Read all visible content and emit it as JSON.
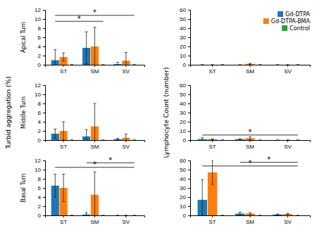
{
  "chart_data": [
    {
      "type": "bar",
      "categories": [
        "ST",
        "SM",
        "SV"
      ],
      "y_label": "Apical Turn",
      "ylim": [
        0,
        12
      ],
      "yticks": [
        0,
        2,
        4,
        6,
        8,
        10,
        12
      ],
      "series": [
        {
          "name": "Gd-DTPA",
          "values": [
            1.0,
            3.7,
            0.15
          ],
          "errors": [
            2.3,
            3.5,
            0.4
          ]
        },
        {
          "name": "Gd-DTPA-BMA",
          "values": [
            1.7,
            4.0,
            0.9
          ],
          "errors": [
            0.9,
            4.2,
            1.8
          ]
        },
        {
          "name": "Control",
          "values": [
            0.0,
            0.0,
            0.0
          ],
          "errors": [
            0.0,
            0.0,
            0.0
          ]
        }
      ],
      "annotations": [
        {
          "text": "*",
          "y": 9.5,
          "from": {
            "category": "ST",
            "series": "Gd-DTPA"
          },
          "to": {
            "category": "SM",
            "series": "Control"
          }
        },
        {
          "text": "*",
          "y": 10.8,
          "from": {
            "category": "ST",
            "series": "Gd-DTPA"
          },
          "to": {
            "category": "SV",
            "series": "Control"
          }
        }
      ]
    },
    {
      "type": "bar",
      "categories": [
        "ST",
        "SM",
        "SV"
      ],
      "ylim": [
        0,
        60
      ],
      "yticks": [
        0,
        10,
        20,
        30,
        40,
        50,
        60
      ],
      "legend": "upper right",
      "series": [
        {
          "name": "Gd-DTPA",
          "values": [
            0.0,
            0.0,
            0.0
          ],
          "errors": [
            0.0,
            0.0,
            0.0
          ]
        },
        {
          "name": "Gd-DTPA-BMA",
          "values": [
            0.0,
            1.0,
            0.0
          ],
          "errors": [
            0.0,
            0.5,
            0.0
          ]
        },
        {
          "name": "Control",
          "values": [
            0.0,
            0.0,
            0.0
          ],
          "errors": [
            0.0,
            0.0,
            0.0
          ]
        }
      ],
      "annotations": []
    },
    {
      "type": "bar",
      "categories": [
        "ST",
        "SM",
        "SV"
      ],
      "y_label": "Middle Turn",
      "ylim": [
        0,
        12
      ],
      "yticks": [
        0,
        2,
        4,
        6,
        8,
        10,
        12
      ],
      "series": [
        {
          "name": "Gd-DTPA",
          "values": [
            1.4,
            0.8,
            0.2
          ],
          "errors": [
            1.0,
            1.5,
            0.15
          ]
        },
        {
          "name": "Gd-DTPA-BMA",
          "values": [
            2.0,
            3.0,
            0.5
          ],
          "errors": [
            2.0,
            5.0,
            0.8
          ]
        },
        {
          "name": "Control",
          "values": [
            0.0,
            0.0,
            0.0
          ],
          "errors": [
            0.0,
            0.0,
            0.0
          ]
        }
      ],
      "annotations": []
    },
    {
      "type": "bar",
      "categories": [
        "ST",
        "SM",
        "SV"
      ],
      "ylim": [
        0,
        60
      ],
      "yticks": [
        0,
        10,
        20,
        30,
        40,
        50,
        60
      ],
      "series": [
        {
          "name": "Gd-DTPA",
          "values": [
            1.0,
            1.0,
            0.0
          ],
          "errors": [
            1.5,
            0.5,
            0.0
          ]
        },
        {
          "name": "Gd-DTPA-BMA",
          "values": [
            1.0,
            2.0,
            0.0
          ],
          "errors": [
            0.5,
            1.5,
            0.0
          ]
        },
        {
          "name": "Control",
          "values": [
            0.0,
            0.0,
            0.0
          ],
          "errors": [
            0.0,
            0.0,
            0.0
          ]
        }
      ],
      "annotations": [
        {
          "text": "*",
          "y": 5.5,
          "from": {
            "category": "ST",
            "series": "Gd-DTPA"
          },
          "to": {
            "category": "SV",
            "series": "Control"
          }
        }
      ]
    },
    {
      "type": "bar",
      "categories": [
        "ST",
        "SM",
        "SV"
      ],
      "y_label": "Basal Turn",
      "ylim": [
        0,
        12
      ],
      "yticks": [
        0,
        2,
        4,
        6,
        8,
        10,
        12
      ],
      "series": [
        {
          "name": "Gd-DTPA",
          "values": [
            6.5,
            0.2,
            0.0
          ],
          "errors": [
            2.5,
            0.4,
            0.0
          ]
        },
        {
          "name": "Gd-DTPA-BMA",
          "values": [
            6.0,
            4.5,
            0.0
          ],
          "errors": [
            3.0,
            5.0,
            0.0
          ]
        },
        {
          "name": "Control",
          "values": [
            0.0,
            0.0,
            0.0
          ],
          "errors": [
            0.0,
            0.0,
            0.0
          ]
        }
      ],
      "annotations": [
        {
          "text": "*",
          "y": 10.5,
          "from": {
            "category": "ST",
            "series": "Gd-DTPA"
          },
          "to": {
            "category": "SV",
            "series": "Control"
          }
        },
        {
          "text": "*",
          "y": 11.5,
          "from": {
            "category": "SM",
            "series": "Gd-DTPA"
          },
          "to": {
            "category": "SV",
            "series": "Control"
          }
        }
      ]
    },
    {
      "type": "bar",
      "categories": [
        "ST",
        "SM",
        "SV"
      ],
      "ylim": [
        0,
        60
      ],
      "yticks": [
        0,
        10,
        20,
        30,
        40,
        50,
        60
      ],
      "series": [
        {
          "name": "Gd-DTPA",
          "values": [
            17.0,
            2.0,
            1.0
          ],
          "errors": [
            22.0,
            1.5,
            0.5
          ]
        },
        {
          "name": "Gd-DTPA-BMA",
          "values": [
            47.0,
            2.0,
            1.5
          ],
          "errors": [
            13.0,
            1.0,
            0.5
          ]
        },
        {
          "name": "Control",
          "values": [
            0.0,
            0.0,
            0.0
          ],
          "errors": [
            0.0,
            0.0,
            0.0
          ]
        }
      ],
      "annotations": [
        {
          "text": "*",
          "y": 54,
          "from": {
            "category": "ST",
            "series": "Gd-DTPA"
          },
          "to": {
            "category": "SV",
            "series": "Control"
          }
        },
        {
          "text": "*",
          "y": 58,
          "from": {
            "category": "SM",
            "series": "Gd-DTPA"
          },
          "to": {
            "category": "SV",
            "series": "Control"
          }
        }
      ]
    }
  ],
  "shared_y_labels": {
    "left": "Turbid aggregation (%)",
    "right": "Lymphocyte Count (number)"
  }
}
